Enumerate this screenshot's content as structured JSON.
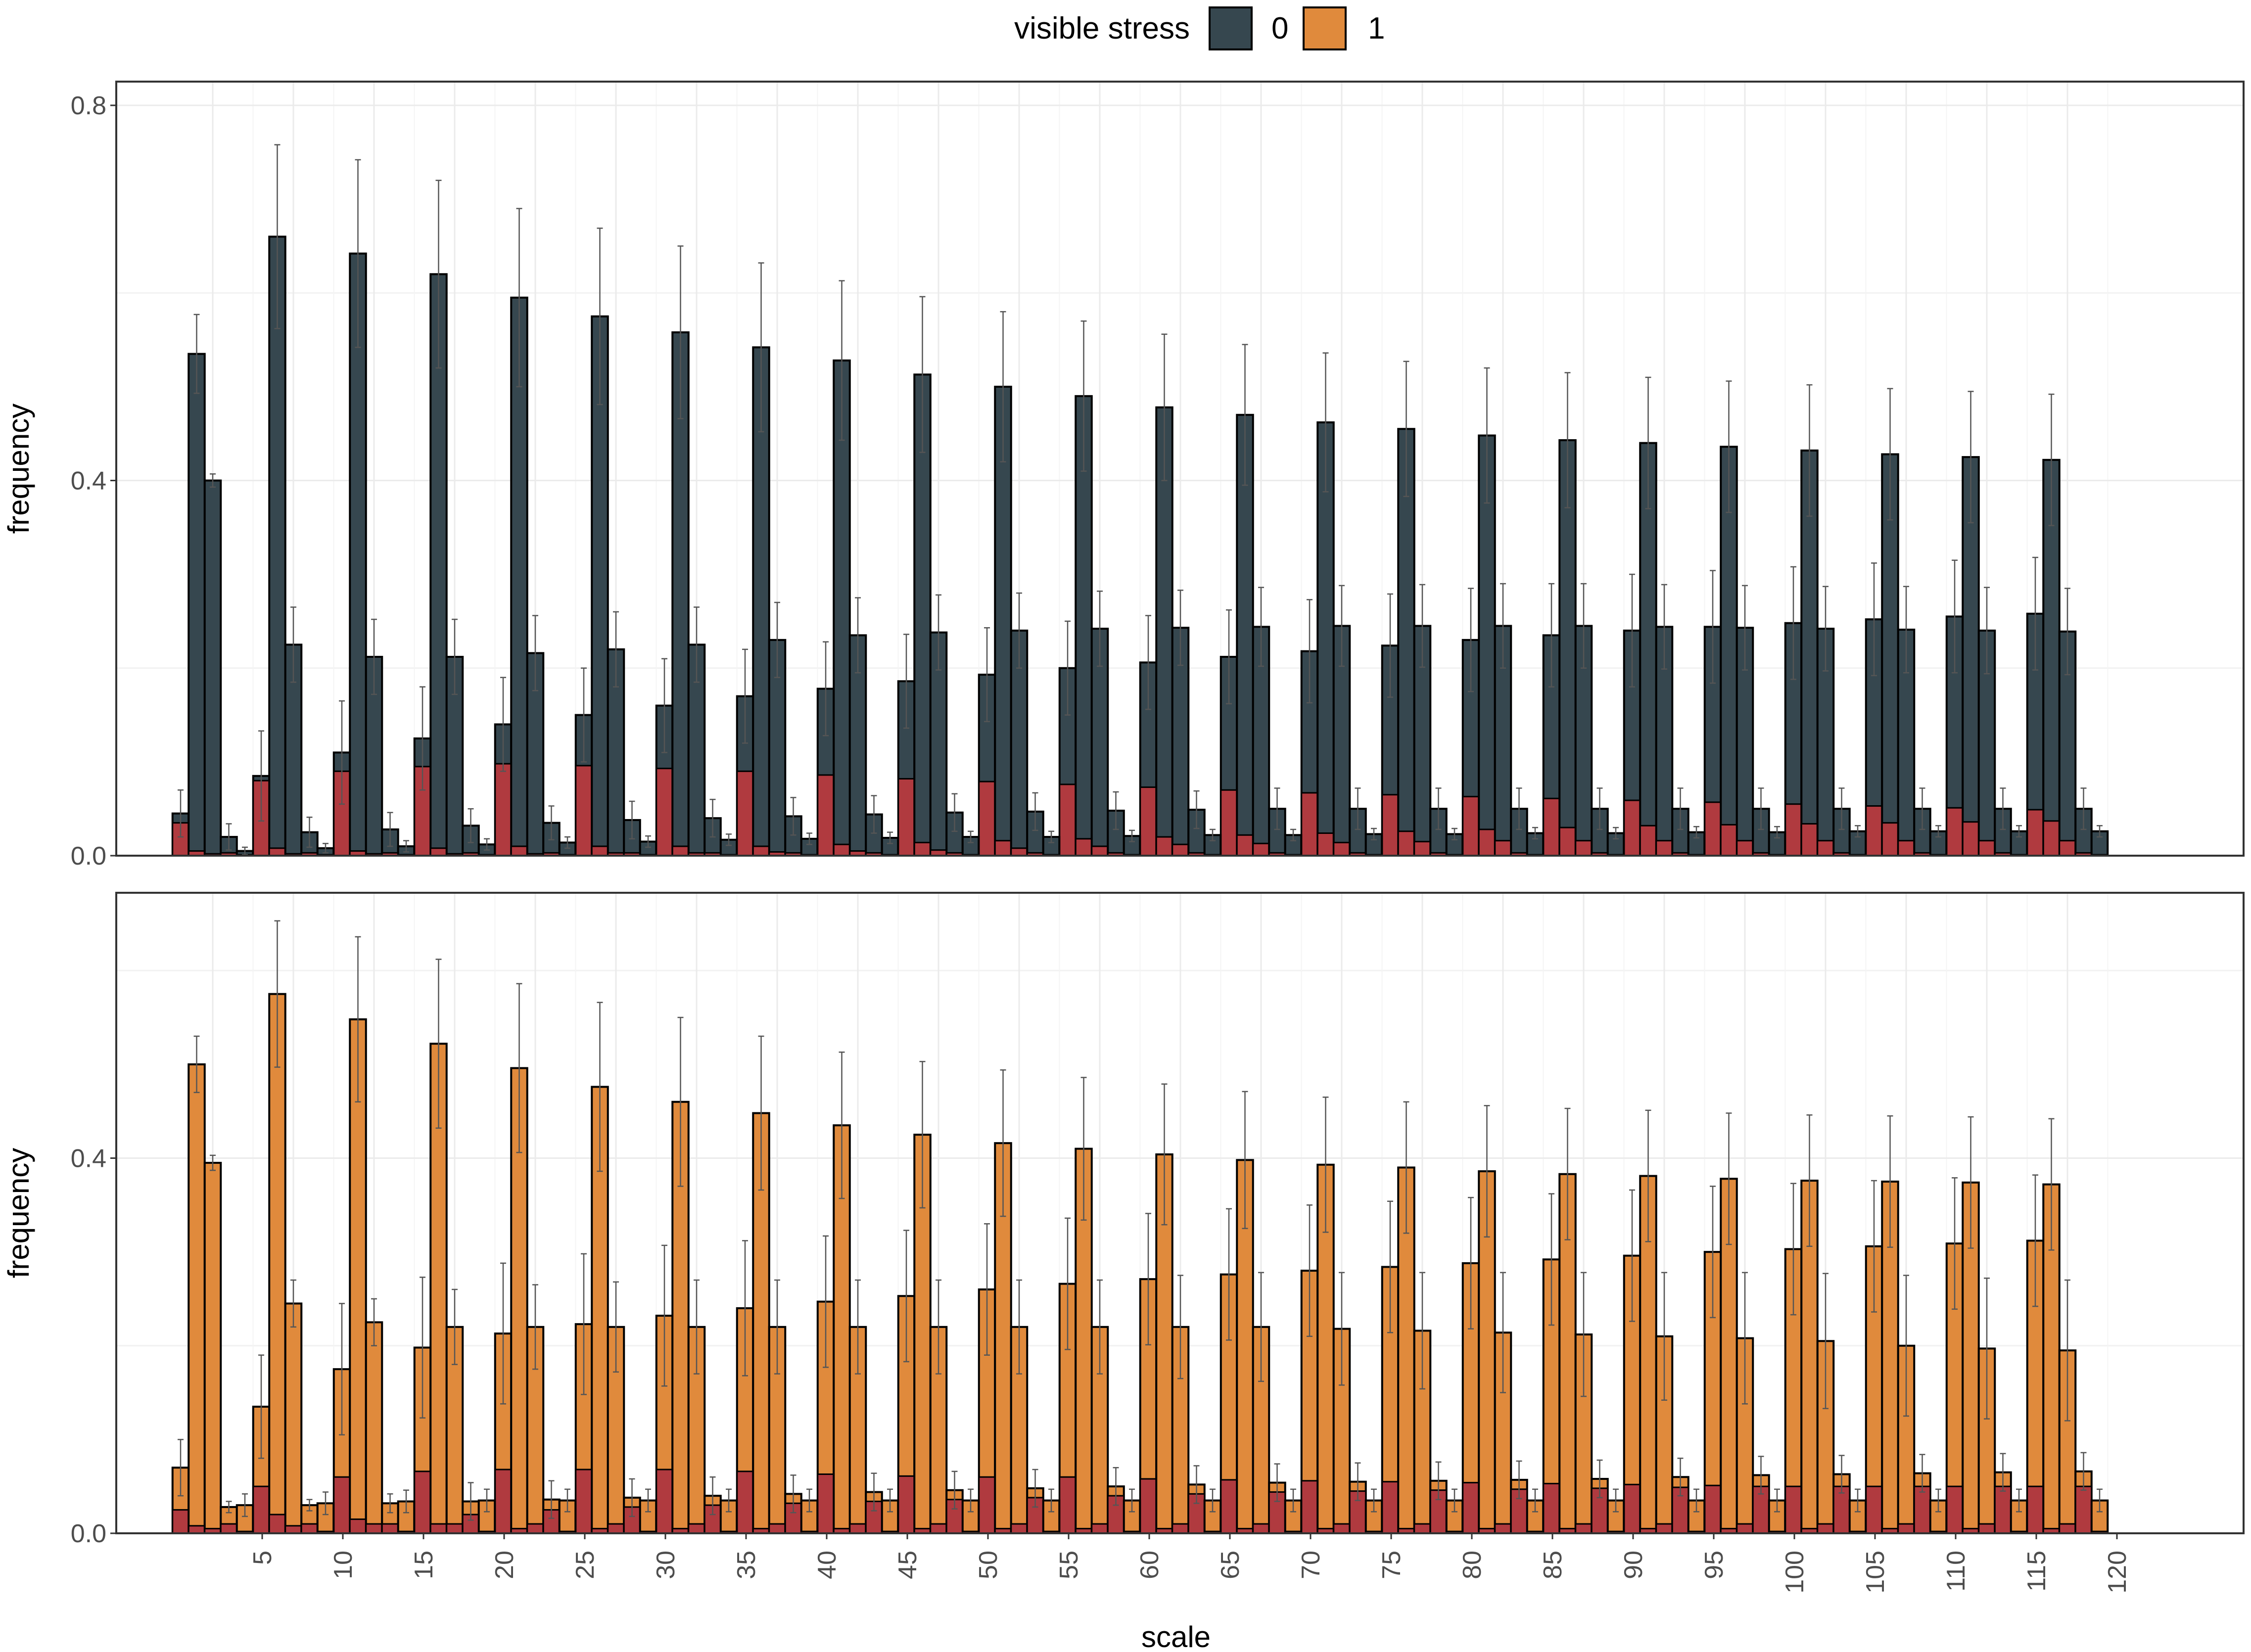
{
  "chart_data": {
    "type": "bar",
    "legend": {
      "title": "visible stress",
      "position": "top",
      "entries": [
        {
          "label": "0",
          "color": "#36474f"
        },
        {
          "label": "1",
          "color": "#e08a3c"
        }
      ]
    },
    "xlabel": "scale",
    "x_tick_labels": [
      "5",
      "10",
      "15",
      "20",
      "25",
      "30",
      "35",
      "40",
      "45",
      "50",
      "55",
      "60",
      "65",
      "70",
      "75",
      "80",
      "85",
      "90",
      "95",
      "100",
      "105",
      "110",
      "115",
      "120"
    ],
    "overlay_color": "#b03a3f",
    "grid": true,
    "panels": [
      {
        "ylabel": "frequency",
        "ylim": [
          0,
          0.8
        ],
        "y_tick_labels": [
          "0.0",
          "0.4",
          "0.8"
        ],
        "y_ticks": [
          0,
          0.4,
          0.8
        ],
        "fill_color": "#36474f",
        "series": [
          {
            "name": "bar1",
            "values": [
              0.045,
              0.085,
              0.11,
              0.125,
              0.14,
              0.15,
              0.16,
              0.17,
              0.178,
              0.186,
              0.193,
              0.2,
              0.206,
              0.212,
              0.218,
              0.224,
              0.23,
              0.235,
              0.24,
              0.244,
              0.248,
              0.252,
              0.255,
              0.258
            ],
            "errors": [
              0.025,
              0.048,
              0.055,
              0.055,
              0.05,
              0.05,
              0.05,
              0.05,
              0.05,
              0.05,
              0.05,
              0.05,
              0.05,
              0.05,
              0.055,
              0.055,
              0.055,
              0.055,
              0.06,
              0.06,
              0.06,
              0.06,
              0.06,
              0.06
            ],
            "overlay": [
              0.035,
              0.08,
              0.09,
              0.095,
              0.098,
              0.096,
              0.093,
              0.09,
              0.086,
              0.082,
              0.079,
              0.076,
              0.073,
              0.07,
              0.067,
              0.065,
              0.063,
              0.061,
              0.059,
              0.057,
              0.055,
              0.053,
              0.051,
              0.049
            ]
          },
          {
            "name": "bar2",
            "values": [
              0.535,
              0.66,
              0.642,
              0.62,
              0.595,
              0.575,
              0.558,
              0.542,
              0.528,
              0.513,
              0.5,
              0.49,
              0.478,
              0.47,
              0.462,
              0.455,
              0.448,
              0.443,
              0.44,
              0.436,
              0.432,
              0.428,
              0.425,
              0.422
            ],
            "errors": [
              0.042,
              0.098,
              0.1,
              0.1,
              0.095,
              0.094,
              0.092,
              0.09,
              0.085,
              0.083,
              0.08,
              0.08,
              0.078,
              0.075,
              0.074,
              0.072,
              0.072,
              0.072,
              0.07,
              0.07,
              0.07,
              0.07,
              0.07,
              0.07
            ],
            "overlay": [
              0.005,
              0.008,
              0.005,
              0.008,
              0.01,
              0.01,
              0.01,
              0.01,
              0.012,
              0.014,
              0.016,
              0.018,
              0.02,
              0.022,
              0.024,
              0.026,
              0.028,
              0.03,
              0.032,
              0.033,
              0.034,
              0.035,
              0.036,
              0.037
            ]
          },
          {
            "name": "bar3",
            "values": [
              0.4,
              0.225,
              0.212,
              0.212,
              0.216,
              0.22,
              0.225,
              0.23,
              0.235,
              0.238,
              0.24,
              0.242,
              0.243,
              0.244,
              0.245,
              0.245,
              0.245,
              0.245,
              0.244,
              0.243,
              0.242,
              0.241,
              0.24,
              0.239
            ],
            "errors": [
              0.007,
              0.04,
              0.04,
              0.04,
              0.04,
              0.04,
              0.04,
              0.04,
              0.04,
              0.04,
              0.04,
              0.04,
              0.04,
              0.042,
              0.043,
              0.044,
              0.045,
              0.045,
              0.045,
              0.045,
              0.045,
              0.046,
              0.046,
              0.046
            ],
            "overlay": [
              0.002,
              0.002,
              0.002,
              0.002,
              0.002,
              0.003,
              0.003,
              0.004,
              0.005,
              0.006,
              0.008,
              0.01,
              0.012,
              0.013,
              0.014,
              0.015,
              0.016,
              0.016,
              0.016,
              0.016,
              0.016,
              0.016,
              0.016,
              0.016
            ]
          },
          {
            "name": "bar4",
            "values": [
              0.02,
              0.025,
              0.028,
              0.032,
              0.035,
              0.038,
              0.04,
              0.042,
              0.044,
              0.046,
              0.047,
              0.048,
              0.049,
              0.05,
              0.05,
              0.05,
              0.05,
              0.05,
              0.05,
              0.05,
              0.05,
              0.05,
              0.05,
              0.05
            ],
            "errors": [
              0.014,
              0.016,
              0.018,
              0.018,
              0.018,
              0.02,
              0.02,
              0.02,
              0.02,
              0.02,
              0.02,
              0.02,
              0.02,
              0.022,
              0.022,
              0.022,
              0.022,
              0.022,
              0.022,
              0.022,
              0.022,
              0.022,
              0.022,
              0.022
            ],
            "overlay": [
              0.003,
              0.003,
              0.003,
              0.003,
              0.003,
              0.003,
              0.003,
              0.003,
              0.003,
              0.003,
              0.003,
              0.003,
              0.003,
              0.003,
              0.003,
              0.003,
              0.003,
              0.003,
              0.003,
              0.003,
              0.003,
              0.003,
              0.003,
              0.003
            ]
          },
          {
            "name": "bar5",
            "values": [
              0.005,
              0.008,
              0.01,
              0.012,
              0.014,
              0.015,
              0.017,
              0.018,
              0.019,
              0.02,
              0.02,
              0.021,
              0.022,
              0.022,
              0.023,
              0.023,
              0.024,
              0.024,
              0.025,
              0.025,
              0.026,
              0.026,
              0.026,
              0.026
            ],
            "errors": [
              0.004,
              0.005,
              0.006,
              0.006,
              0.006,
              0.006,
              0.006,
              0.006,
              0.006,
              0.006,
              0.006,
              0.006,
              0.006,
              0.006,
              0.006,
              0.006,
              0.006,
              0.006,
              0.006,
              0.006,
              0.006,
              0.006,
              0.006,
              0.006
            ],
            "overlay": [
              0.001,
              0.001,
              0.001,
              0.001,
              0.001,
              0.001,
              0.001,
              0.001,
              0.001,
              0.001,
              0.001,
              0.001,
              0.001,
              0.001,
              0.001,
              0.001,
              0.001,
              0.001,
              0.001,
              0.001,
              0.001,
              0.001,
              0.001,
              0.001
            ]
          }
        ]
      },
      {
        "ylabel": "frequency",
        "ylim": [
          0,
          0.8
        ],
        "y_tick_labels": [
          "0.0",
          "0.4"
        ],
        "y_ticks": [
          0,
          0.4
        ],
        "fill_color": "#e08a3c",
        "series": [
          {
            "name": "bar1",
            "values": [
              0.07,
              0.135,
              0.175,
              0.198,
              0.213,
              0.223,
              0.232,
              0.24,
              0.247,
              0.253,
              0.26,
              0.266,
              0.271,
              0.276,
              0.28,
              0.284,
              0.288,
              0.292,
              0.296,
              0.3,
              0.303,
              0.306,
              0.309,
              0.312
            ],
            "errors": [
              0.03,
              0.055,
              0.07,
              0.075,
              0.075,
              0.075,
              0.075,
              0.072,
              0.07,
              0.07,
              0.07,
              0.07,
              0.07,
              0.07,
              0.07,
              0.07,
              0.07,
              0.07,
              0.07,
              0.07,
              0.07,
              0.07,
              0.07,
              0.07
            ],
            "overlay": [
              0.025,
              0.05,
              0.06,
              0.066,
              0.068,
              0.068,
              0.068,
              0.066,
              0.063,
              0.061,
              0.06,
              0.06,
              0.058,
              0.057,
              0.056,
              0.055,
              0.054,
              0.053,
              0.052,
              0.051,
              0.05,
              0.05,
              0.05,
              0.05
            ]
          },
          {
            "name": "bar2",
            "values": [
              0.5,
              0.575,
              0.548,
              0.522,
              0.496,
              0.476,
              0.46,
              0.448,
              0.435,
              0.425,
              0.416,
              0.41,
              0.404,
              0.398,
              0.393,
              0.39,
              0.386,
              0.383,
              0.381,
              0.378,
              0.376,
              0.375,
              0.374,
              0.372
            ],
            "errors": [
              0.03,
              0.078,
              0.088,
              0.09,
              0.09,
              0.09,
              0.09,
              0.082,
              0.078,
              0.078,
              0.078,
              0.076,
              0.075,
              0.073,
              0.072,
              0.07,
              0.07,
              0.07,
              0.07,
              0.07,
              0.07,
              0.07,
              0.07,
              0.07
            ],
            "overlay": [
              0.008,
              0.02,
              0.015,
              0.01,
              0.005,
              0.005,
              0.005,
              0.005,
              0.005,
              0.005,
              0.005,
              0.005,
              0.005,
              0.005,
              0.005,
              0.005,
              0.005,
              0.005,
              0.005,
              0.005,
              0.005,
              0.005,
              0.005,
              0.005
            ]
          },
          {
            "name": "bar3",
            "values": [
              0.395,
              0.245,
              0.225,
              0.22,
              0.22,
              0.22,
              0.22,
              0.22,
              0.22,
              0.22,
              0.22,
              0.22,
              0.22,
              0.22,
              0.218,
              0.216,
              0.214,
              0.212,
              0.21,
              0.208,
              0.205,
              0.2,
              0.197,
              0.195
            ],
            "errors": [
              0.008,
              0.025,
              0.025,
              0.04,
              0.045,
              0.048,
              0.05,
              0.05,
              0.05,
              0.05,
              0.05,
              0.05,
              0.055,
              0.058,
              0.06,
              0.062,
              0.064,
              0.066,
              0.068,
              0.07,
              0.072,
              0.075,
              0.075,
              0.075
            ],
            "overlay": [
              0.005,
              0.008,
              0.01,
              0.01,
              0.01,
              0.01,
              0.01,
              0.01,
              0.01,
              0.01,
              0.01,
              0.01,
              0.01,
              0.01,
              0.01,
              0.01,
              0.01,
              0.01,
              0.01,
              0.01,
              0.01,
              0.01,
              0.01,
              0.01
            ]
          },
          {
            "name": "bar4",
            "values": [
              0.028,
              0.03,
              0.032,
              0.034,
              0.036,
              0.038,
              0.04,
              0.042,
              0.044,
              0.046,
              0.048,
              0.05,
              0.052,
              0.054,
              0.055,
              0.056,
              0.057,
              0.058,
              0.06,
              0.062,
              0.063,
              0.064,
              0.065,
              0.066
            ],
            "errors": [
              0.006,
              0.006,
              0.01,
              0.02,
              0.02,
              0.02,
              0.02,
              0.02,
              0.02,
              0.02,
              0.02,
              0.02,
              0.02,
              0.02,
              0.02,
              0.02,
              0.02,
              0.02,
              0.02,
              0.02,
              0.02,
              0.02,
              0.02,
              0.02
            ],
            "overlay": [
              0.01,
              0.01,
              0.01,
              0.02,
              0.025,
              0.028,
              0.03,
              0.032,
              0.034,
              0.036,
              0.038,
              0.04,
              0.042,
              0.044,
              0.045,
              0.046,
              0.047,
              0.048,
              0.049,
              0.05,
              0.05,
              0.05,
              0.05,
              0.05
            ]
          },
          {
            "name": "bar5",
            "values": [
              0.03,
              0.032,
              0.034,
              0.035,
              0.035,
              0.035,
              0.035,
              0.035,
              0.035,
              0.035,
              0.035,
              0.035,
              0.035,
              0.035,
              0.035,
              0.035,
              0.035,
              0.035,
              0.035,
              0.035,
              0.035,
              0.035,
              0.035,
              0.035
            ],
            "errors": [
              0.012,
              0.012,
              0.012,
              0.012,
              0.012,
              0.012,
              0.012,
              0.012,
              0.012,
              0.012,
              0.012,
              0.012,
              0.012,
              0.012,
              0.012,
              0.012,
              0.012,
              0.012,
              0.012,
              0.012,
              0.012,
              0.012,
              0.012,
              0.012
            ],
            "overlay": [
              0.002,
              0.002,
              0.002,
              0.002,
              0.002,
              0.002,
              0.002,
              0.002,
              0.002,
              0.002,
              0.002,
              0.002,
              0.002,
              0.002,
              0.002,
              0.002,
              0.002,
              0.002,
              0.002,
              0.002,
              0.002,
              0.002,
              0.002,
              0.002
            ]
          }
        ]
      }
    ]
  }
}
